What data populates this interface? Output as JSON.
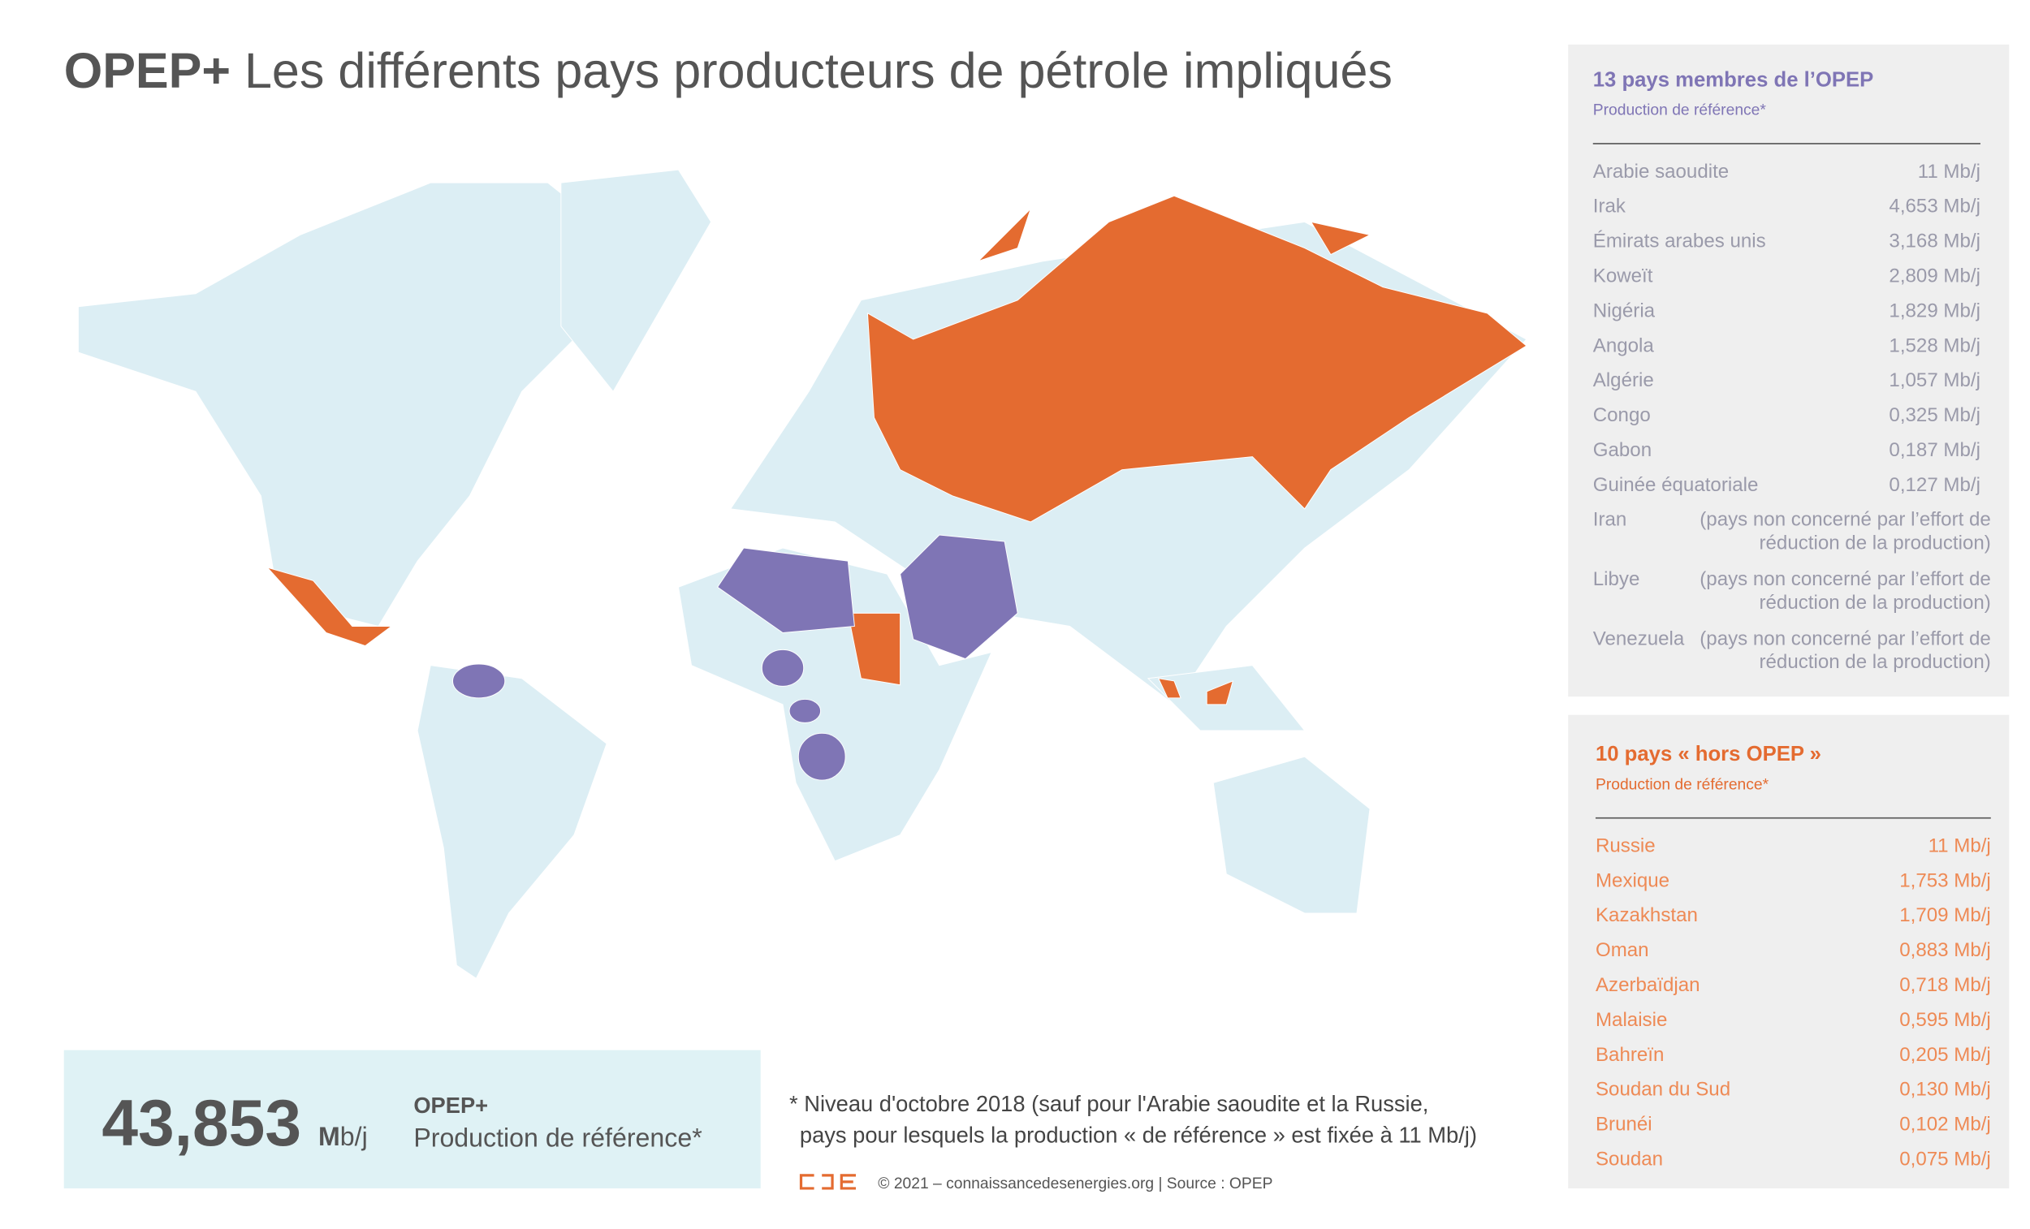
{
  "title": {
    "bold": "OPEP+",
    "rest": "Les différents pays producteurs de pétrole impliqués"
  },
  "opec": {
    "heading": "13 pays membres de l’OPEP",
    "subheading": "Production de référence*",
    "rows": [
      [
        "Arabie saoudite",
        "11 Mb/j"
      ],
      [
        "Irak",
        "4,653 Mb/j"
      ],
      [
        "Émirats arabes unis",
        "3,168 Mb/j"
      ],
      [
        "Koweït",
        "2,809 Mb/j"
      ],
      [
        "Nigéria",
        "1,829 Mb/j"
      ],
      [
        "Angola",
        "1,528 Mb/j"
      ],
      [
        "Algérie",
        "1,057 Mb/j"
      ],
      [
        "Congo",
        "0,325 Mb/j"
      ],
      [
        "Gabon",
        "0,187 Mb/j"
      ],
      [
        "Guinée équatoriale",
        "0,127 Mb/j"
      ]
    ],
    "excluded": [
      [
        "Iran",
        "(pays non concerné par l’effort de",
        "réduction de la production)"
      ],
      [
        "Libye",
        "(pays non concerné par l’effort de",
        "réduction de la production)"
      ],
      [
        "Venezuela",
        "(pays non concerné par l’effort de",
        "réduction de la production)"
      ]
    ]
  },
  "non_opec": {
    "heading": "10 pays « hors OPEP »",
    "subheading": "Production de référence*",
    "rows": [
      [
        "Russie",
        "11 Mb/j"
      ],
      [
        "Mexique",
        "1,753 Mb/j"
      ],
      [
        "Kazakhstan",
        "1,709 Mb/j"
      ],
      [
        "Oman",
        "0,883 Mb/j"
      ],
      [
        "Azerbaïdjan",
        "0,718 Mb/j"
      ],
      [
        "Malaisie",
        "0,595 Mb/j"
      ],
      [
        "Bahreïn",
        "0,205 Mb/j"
      ],
      [
        "Soudan du Sud",
        "0,130 Mb/j"
      ],
      [
        "Brunéi",
        "0,102 Mb/j"
      ],
      [
        "Soudan",
        "0,075 Mb/j"
      ]
    ]
  },
  "total": {
    "value": "43,853",
    "unit_bold": "M",
    "unit": "b/j",
    "label": "OPEP+",
    "sublabel": "Production de référence*"
  },
  "footnote": [
    "* Niveau d'octobre 2018 (sauf pour l'Arabie saoudite et la Russie,",
    "pays pour lesquels la production « de référence » est fixée à 11 Mb/j)"
  ],
  "credit": "© 2021 – connaissancedesenergies.org | Source : OPEP"
}
